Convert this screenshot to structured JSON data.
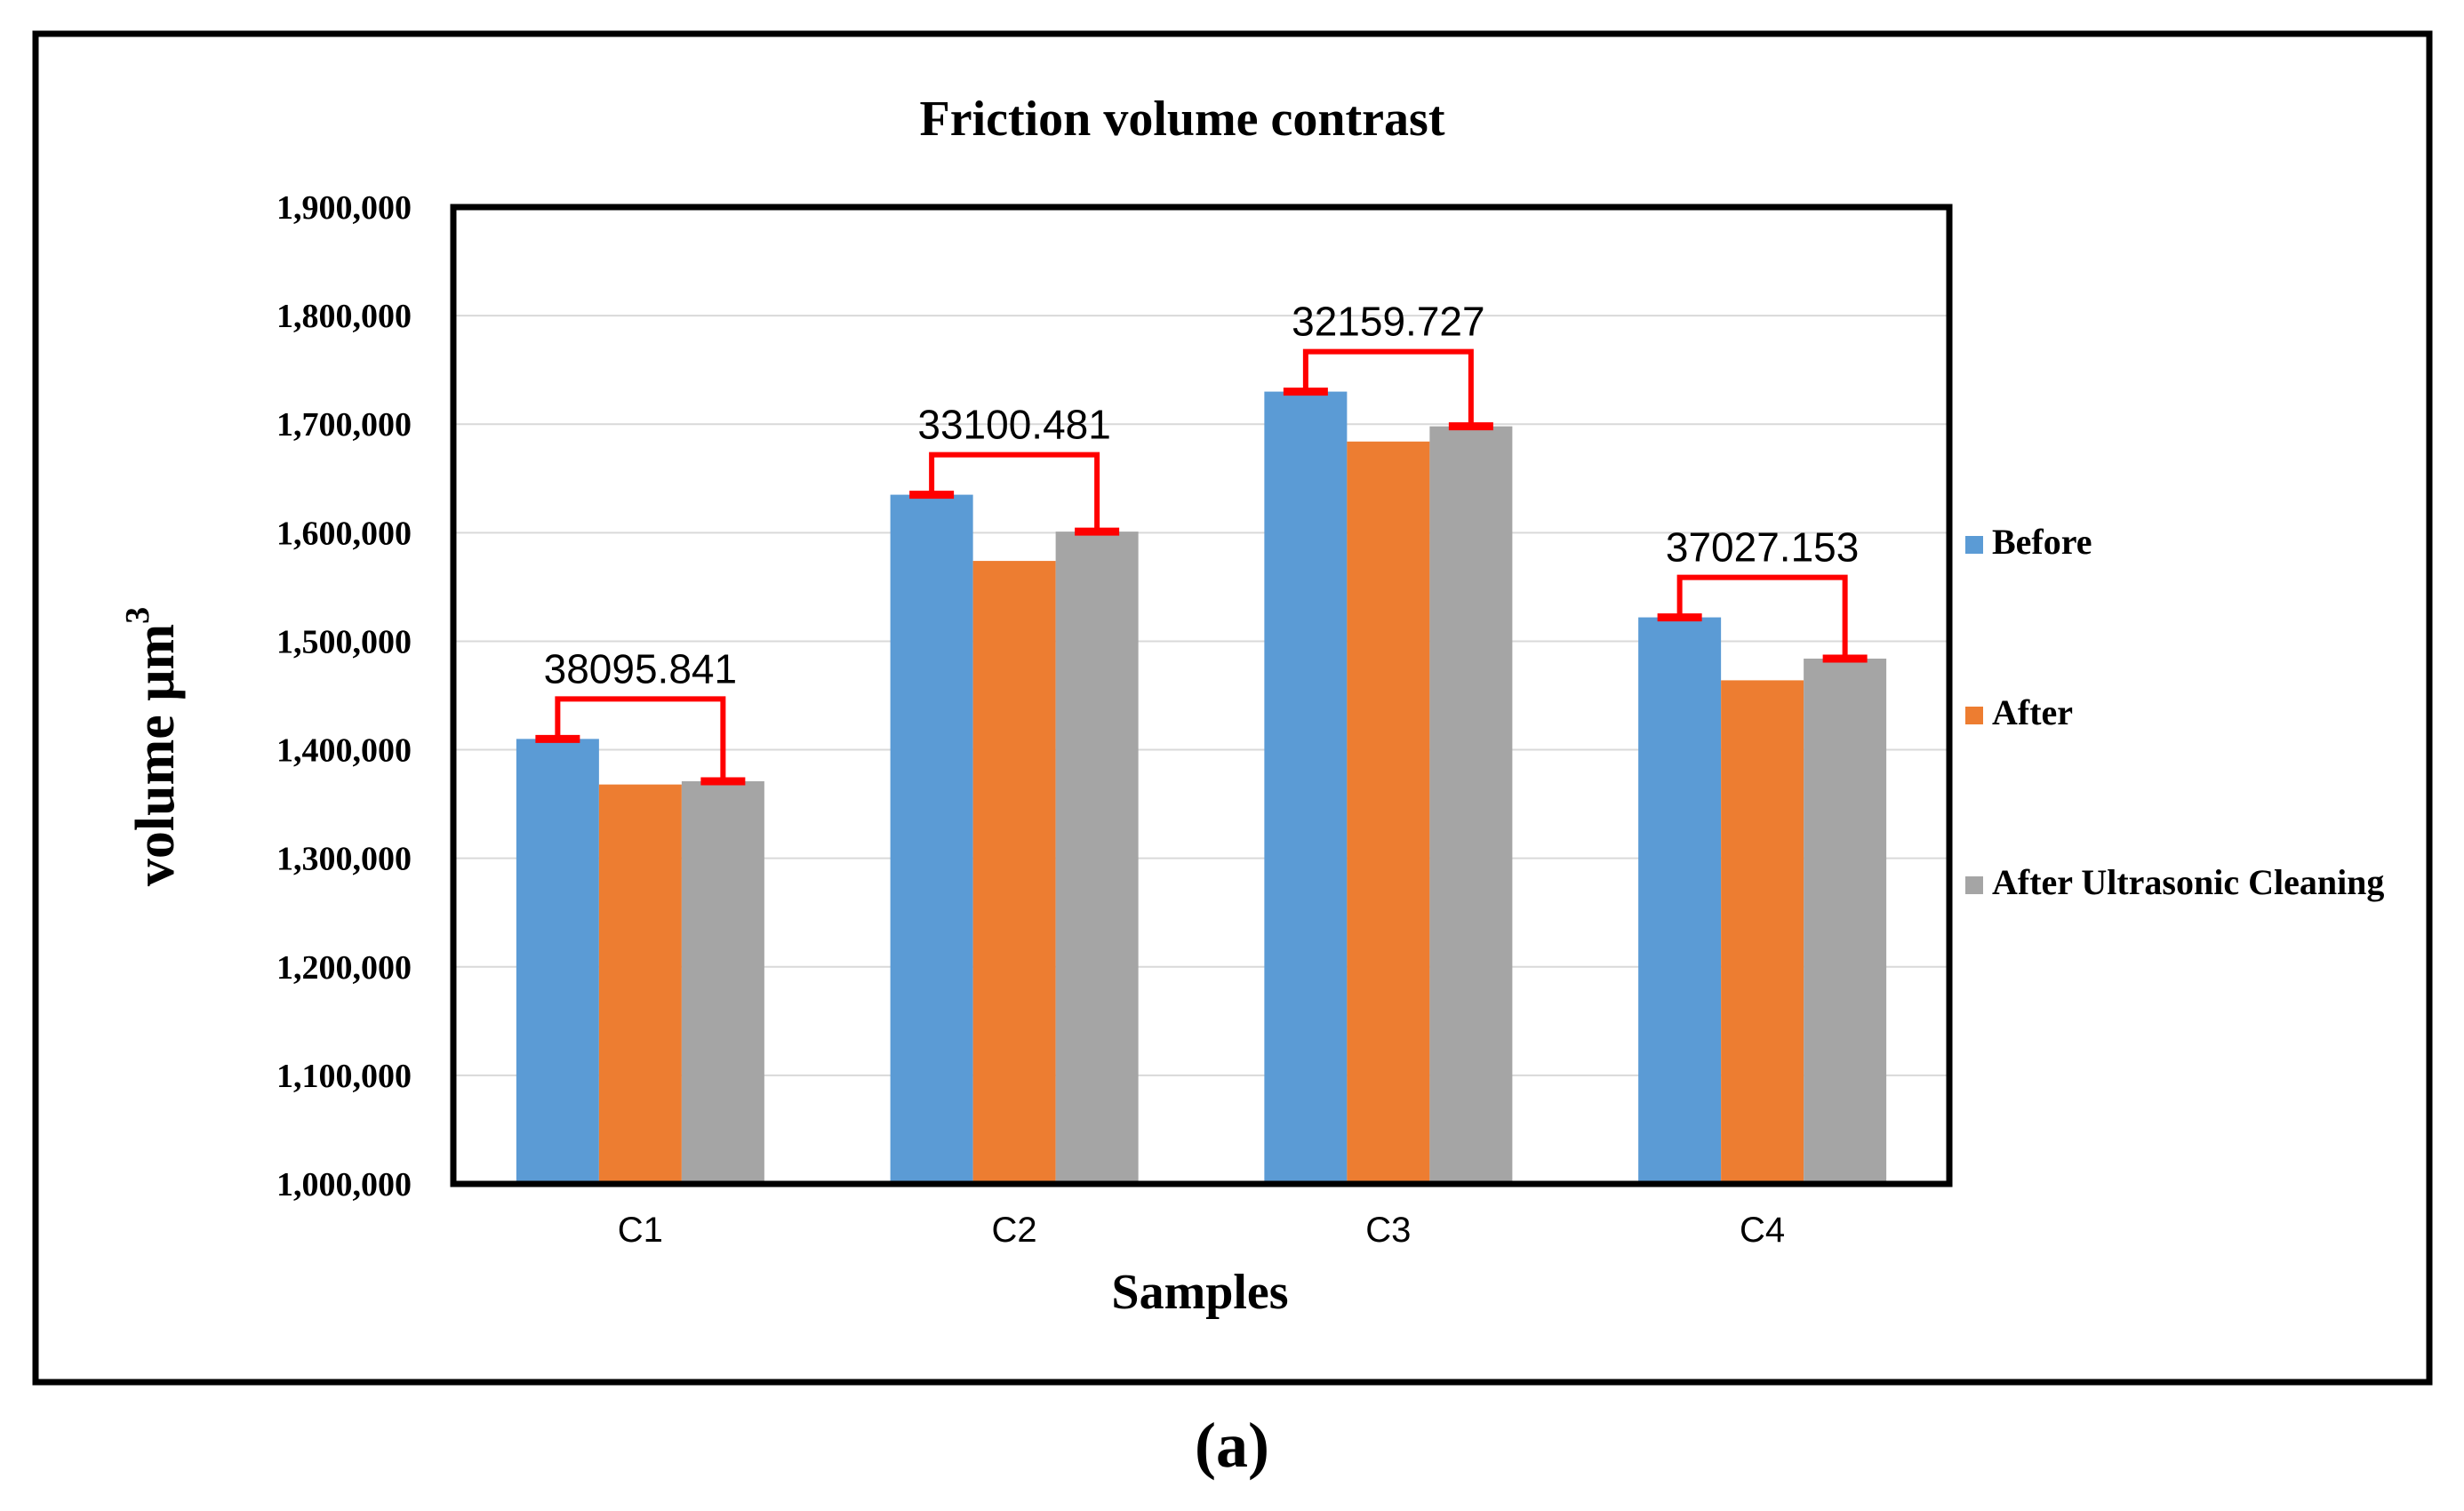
{
  "chart_data": {
    "type": "bar",
    "title": "Friction volume contrast",
    "xlabel": "Samples",
    "ylabel": "volume μm",
    "ylabel_superscript": "3",
    "ylim": [
      1000000,
      1900000
    ],
    "ytick_step": 100000,
    "yticks": [
      "1,000,000",
      "1,100,000",
      "1,200,000",
      "1,300,000",
      "1,400,000",
      "1,500,000",
      "1,600,000",
      "1,700,000",
      "1,800,000",
      "1,900,000"
    ],
    "grid": true,
    "legend_position": "right",
    "categories": [
      "C1",
      "C2",
      "C3",
      "C4"
    ],
    "series": [
      {
        "name": "Before",
        "color": "#5b9bd5",
        "values": [
          1410000,
          1635000,
          1730000,
          1522000
        ]
      },
      {
        "name": "After",
        "color": "#ed7d31",
        "values": [
          1368000,
          1574000,
          1684000,
          1464000
        ]
      },
      {
        "name": "After Ultrasonic Cleaning",
        "color": "#a5a5a5",
        "values": [
          1371000,
          1601000,
          1698000,
          1484000
        ]
      }
    ],
    "annotations": [
      {
        "category": "C1",
        "text": "38095.841",
        "from_series": 0,
        "to_series": 2
      },
      {
        "category": "C2",
        "text": "33100.481",
        "from_series": 0,
        "to_series": 2
      },
      {
        "category": "C3",
        "text": "32159.727",
        "from_series": 0,
        "to_series": 2
      },
      {
        "category": "C4",
        "text": "37027.153",
        "from_series": 0,
        "to_series": 2
      }
    ],
    "annotation_color": "#ff0000"
  },
  "caption": "(a)"
}
